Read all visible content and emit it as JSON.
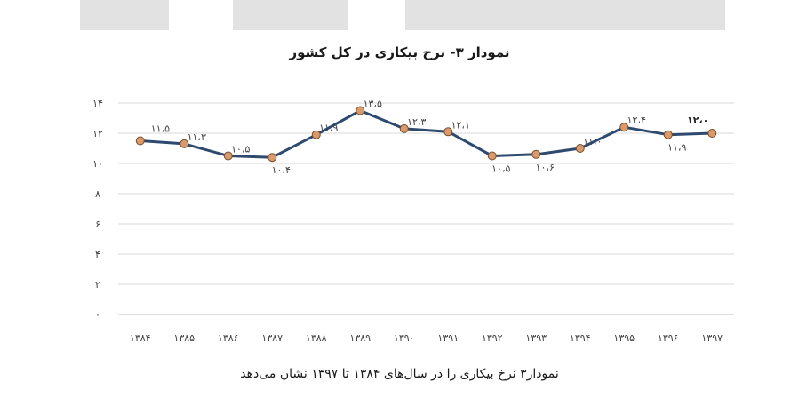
{
  "chart_data": {
    "type": "line",
    "title": "نمودار ۳- نرخ بیکاری در کل کشور",
    "caption": "نمودار۳ نرخ بیکاری را در سال‌های ۱۳۸۴ تا ۱۳۹۷ نشان می‌دهد",
    "categories": [
      "۱۳۸۴",
      "۱۳۸۵",
      "۱۳۸۶",
      "۱۳۸۷",
      "۱۳۸۸",
      "۱۳۸۹",
      "۱۳۹۰",
      "۱۳۹۱",
      "۱۳۹۲",
      "۱۳۹۳",
      "۱۳۹۴",
      "۱۳۹۵",
      "۱۳۹۶",
      "۱۳۹۷"
    ],
    "values": [
      11.5,
      11.3,
      10.5,
      10.4,
      11.9,
      13.5,
      12.3,
      12.1,
      10.5,
      10.6,
      11.0,
      12.4,
      11.9,
      12.0
    ],
    "data_labels": [
      "۱۱،۵",
      "۱۱،۳",
      "۱۰،۵",
      "۱۰،۴",
      "۱۱،۹",
      "۱۳،۵",
      "۱۲،۳",
      "۱۲،۱",
      "۱۰،۵",
      "۱۰،۶",
      "۱۱،۰",
      "۱۲،۴",
      "۱۱،۹",
      "۱۲،۰"
    ],
    "y_ticks": [
      0,
      2,
      4,
      6,
      8,
      10,
      12,
      14
    ],
    "y_tick_labels": [
      "۰",
      "۲",
      "۴",
      "۶",
      "۸",
      "۱۰",
      "۱۲",
      "۱۴"
    ],
    "ylim": [
      0,
      14
    ],
    "grid": true,
    "legend": false,
    "colors": {
      "line": "#2e4a6e",
      "marker_fill": "#d99a6c",
      "marker_stroke": "#7a4a2a",
      "grid": "#d9d9d9",
      "axis": "#bfbfbf"
    }
  }
}
